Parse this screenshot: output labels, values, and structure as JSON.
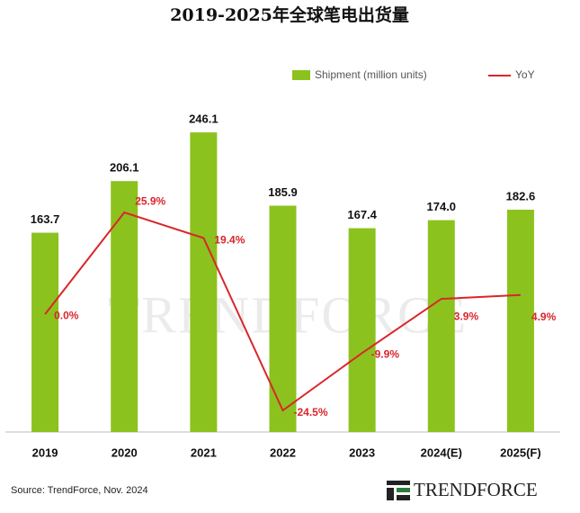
{
  "chart_data": {
    "type": "bar-line",
    "title": "2019-2025年全球笔电出货量",
    "categories": [
      "2019",
      "2020",
      "2021",
      "2022",
      "2023",
      "2024(E)",
      "2025(F)"
    ],
    "series": [
      {
        "name": "Shipment (million units)",
        "type": "bar",
        "color": "#8cc21e",
        "values": [
          163.7,
          206.1,
          246.1,
          185.9,
          167.4,
          174.0,
          182.6
        ],
        "value_labels": [
          "163.7",
          "206.1",
          "246.1",
          "185.9",
          "167.4",
          "174.0",
          "182.6"
        ]
      },
      {
        "name": "YoY",
        "type": "line",
        "axis": "y2",
        "color": "#d9262b",
        "values": [
          0.0,
          25.9,
          19.4,
          -24.5,
          -9.9,
          3.9,
          4.9
        ],
        "value_labels": [
          "0.0%",
          "25.9%",
          "19.4%",
          "-24.5%",
          "-9.9%",
          "3.9%",
          "4.9%"
        ]
      }
    ],
    "ylim": [
      0,
      258
    ],
    "y2lim": [
      -30,
      50
    ],
    "legend": "top-right",
    "source": "Source: TrendForce, Nov. 2024",
    "watermark": "TRENDFORCE",
    "logo": "TRENDFORCE"
  }
}
